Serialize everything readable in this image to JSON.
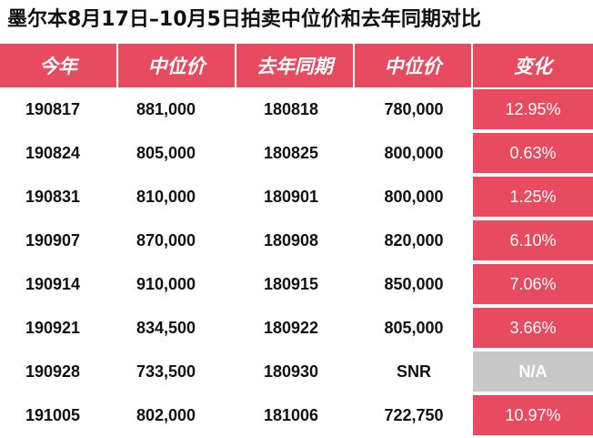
{
  "title": "墨尔本8月17日–10月5日拍卖中位价和去年同期对比",
  "headers": [
    "今年",
    "中位价",
    "去年同期",
    "中位价",
    "变化"
  ],
  "rows": [
    {
      "this_year": "190817",
      "median": "881,000",
      "last_year": "180818",
      "last_median": "780,000",
      "change": "12.95%"
    },
    {
      "this_year": "190824",
      "median": "805,000",
      "last_year": "180825",
      "last_median": "800,000",
      "change": "0.63%"
    },
    {
      "this_year": "190831",
      "median": "810,000",
      "last_year": "180901",
      "last_median": "800,000",
      "change": "1.25%"
    },
    {
      "this_year": "190907",
      "median": "870,000",
      "last_year": "180908",
      "last_median": "820,000",
      "change": "6.10%"
    },
    {
      "this_year": "190914",
      "median": "910,000",
      "last_year": "180915",
      "last_median": "850,000",
      "change": "7.06%"
    },
    {
      "this_year": "190921",
      "median": "834,500",
      "last_year": "180922",
      "last_median": "805,000",
      "change": "3.66%"
    },
    {
      "this_year": "190928",
      "median": "733,500",
      "last_year": "180930",
      "last_median": "SNR",
      "change": "N/A"
    },
    {
      "this_year": "191005",
      "median": "802,000",
      "last_year": "181006",
      "last_median": "722,750",
      "change": "10.97%"
    }
  ],
  "colors": {
    "accent": "#e84a5f",
    "na": "#c8c8c8",
    "text": "#111111"
  }
}
